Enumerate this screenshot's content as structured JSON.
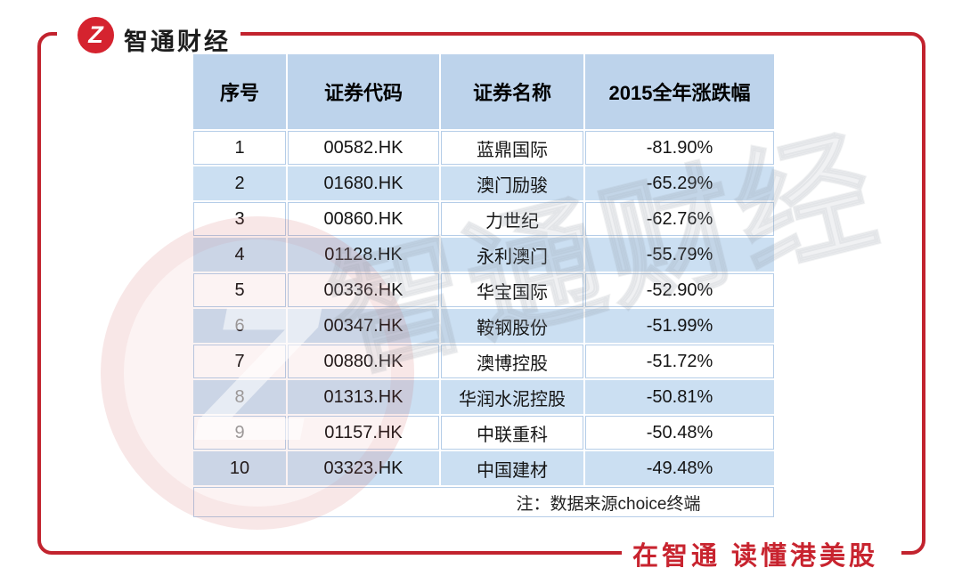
{
  "page": {
    "background": "#ffffff"
  },
  "brand": {
    "name": "智通财经",
    "logo_glyph": "Z",
    "slogan": "在智通 读懂港美股"
  },
  "watermark": {
    "text": "智通财经",
    "glyph": "Z"
  },
  "colors": {
    "frame_red": "#c2232e",
    "logo_red": "#d5232f",
    "slogan_red": "#c8242f",
    "header_bg": "#bdd3eb",
    "stripe_bg": "#cbdff2",
    "grid_line": "#b5cde8"
  },
  "chart_data": {
    "type": "table",
    "columns": [
      "序号",
      "证券代码",
      "证券名称",
      "2015全年涨跌幅"
    ],
    "rows": [
      {
        "index": "1",
        "code": "00582.HK",
        "name": "蓝鼎国际",
        "change": "-81.90%"
      },
      {
        "index": "2",
        "code": "01680.HK",
        "name": "澳门励骏",
        "change": "-65.29%"
      },
      {
        "index": "3",
        "code": "00860.HK",
        "name": "力世纪",
        "change": "-62.76%"
      },
      {
        "index": "4",
        "code": "01128.HK",
        "name": "永利澳门",
        "change": "-55.79%"
      },
      {
        "index": "5",
        "code": "00336.HK",
        "name": "华宝国际",
        "change": "-52.90%"
      },
      {
        "index": "6",
        "code": "00347.HK",
        "name": "鞍钢股份",
        "change": "-51.99%"
      },
      {
        "index": "7",
        "code": "00880.HK",
        "name": "澳博控股",
        "change": "-51.72%"
      },
      {
        "index": "8",
        "code": "01313.HK",
        "name": "华润水泥控股",
        "change": "-50.81%"
      },
      {
        "index": "9",
        "code": "01157.HK",
        "name": "中联重科",
        "change": "-50.48%"
      },
      {
        "index": "10",
        "code": "03323.HK",
        "name": "中国建材",
        "change": "-49.48%"
      }
    ],
    "note": "注：数据来源choice终端"
  }
}
